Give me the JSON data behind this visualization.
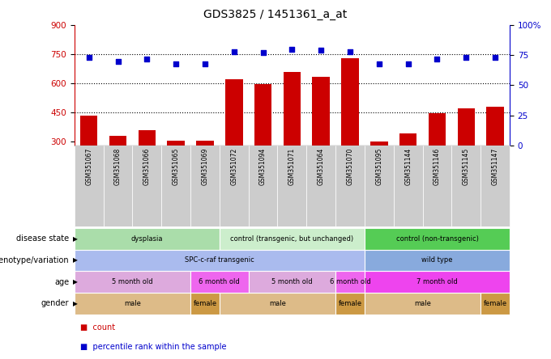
{
  "title": "GDS3825 / 1451361_a_at",
  "samples": [
    "GSM351067",
    "GSM351068",
    "GSM351066",
    "GSM351065",
    "GSM351069",
    "GSM351072",
    "GSM351094",
    "GSM351071",
    "GSM351064",
    "GSM351070",
    "GSM351095",
    "GSM351144",
    "GSM351146",
    "GSM351145",
    "GSM351147"
  ],
  "counts": [
    435,
    330,
    360,
    305,
    305,
    620,
    595,
    660,
    635,
    730,
    300,
    340,
    445,
    470,
    480
  ],
  "percentile": [
    73,
    70,
    72,
    68,
    68,
    78,
    77,
    80,
    79,
    78,
    68,
    68,
    72,
    73,
    73
  ],
  "ylim_left": [
    280,
    900
  ],
  "ylim_right": [
    0,
    100
  ],
  "yticks_left": [
    300,
    450,
    600,
    750,
    900
  ],
  "yticks_right": [
    0,
    25,
    50,
    75,
    100
  ],
  "hlines": [
    450,
    600,
    750
  ],
  "bar_color": "#cc0000",
  "dot_color": "#0000cc",
  "disease_state_groups": [
    {
      "label": "dysplasia",
      "start": 0,
      "end": 5,
      "color": "#aaddaa"
    },
    {
      "label": "control (transgenic, but unchanged)",
      "start": 5,
      "end": 10,
      "color": "#cceecc"
    },
    {
      "label": "control (non-transgenic)",
      "start": 10,
      "end": 15,
      "color": "#55cc55"
    }
  ],
  "genotype_groups": [
    {
      "label": "SPC-c-raf transgenic",
      "start": 0,
      "end": 10,
      "color": "#aabbee"
    },
    {
      "label": "wild type",
      "start": 10,
      "end": 15,
      "color": "#88aadd"
    }
  ],
  "age_groups": [
    {
      "label": "5 month old",
      "start": 0,
      "end": 4,
      "color": "#ddaadd"
    },
    {
      "label": "6 month old",
      "start": 4,
      "end": 6,
      "color": "#ee66ee"
    },
    {
      "label": "5 month old",
      "start": 6,
      "end": 9,
      "color": "#ddaadd"
    },
    {
      "label": "6 month old",
      "start": 9,
      "end": 10,
      "color": "#ee66ee"
    },
    {
      "label": "7 month old",
      "start": 10,
      "end": 15,
      "color": "#ee44ee"
    }
  ],
  "gender_groups": [
    {
      "label": "male",
      "start": 0,
      "end": 4,
      "color": "#ddbb88"
    },
    {
      "label": "female",
      "start": 4,
      "end": 5,
      "color": "#cc9944"
    },
    {
      "label": "male",
      "start": 5,
      "end": 9,
      "color": "#ddbb88"
    },
    {
      "label": "female",
      "start": 9,
      "end": 10,
      "color": "#cc9944"
    },
    {
      "label": "male",
      "start": 10,
      "end": 14,
      "color": "#ddbb88"
    },
    {
      "label": "female",
      "start": 14,
      "end": 15,
      "color": "#cc9944"
    }
  ],
  "row_labels": [
    "disease state",
    "genotype/variation",
    "age",
    "gender"
  ],
  "legend_items": [
    {
      "label": "count",
      "color": "#cc0000"
    },
    {
      "label": "percentile rank within the sample",
      "color": "#0000cc"
    }
  ],
  "tick_label_bg": "#cccccc"
}
